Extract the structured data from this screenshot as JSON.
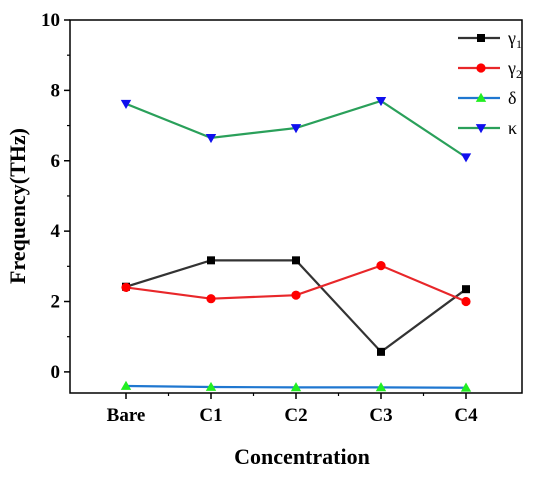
{
  "chart_data": {
    "type": "line",
    "xlabel": "Concentration",
    "ylabel": "Frequency(THz)",
    "categories": [
      "Bare",
      "C1",
      "C2",
      "C3",
      "C4"
    ],
    "ylim": [
      -0.6,
      10
    ],
    "yticks": [
      "0",
      "2",
      "4",
      "6",
      "8",
      "10"
    ],
    "grid": false,
    "legend_position": "top-right",
    "series": [
      {
        "name": "γ",
        "subscript": "1",
        "color": "#333333",
        "marker": "square",
        "marker_color": "#000000",
        "values": [
          2.42,
          3.17,
          3.17,
          0.57,
          2.35
        ]
      },
      {
        "name": "γ",
        "subscript": "2",
        "color": "#e8272a",
        "marker": "circle",
        "marker_color": "#ff0000",
        "values": [
          2.4,
          2.08,
          2.18,
          3.02,
          2.0
        ]
      },
      {
        "name": "δ",
        "subscript": "",
        "color": "#1f77d0",
        "marker": "triangle-up",
        "marker_color": "#22ee22",
        "values": [
          -0.4,
          -0.43,
          -0.44,
          -0.44,
          -0.45
        ]
      },
      {
        "name": "κ",
        "subscript": "",
        "color": "#2aa05a",
        "marker": "triangle-down",
        "marker_color": "#1010ee",
        "values": [
          7.62,
          6.65,
          6.93,
          7.7,
          6.1
        ]
      }
    ]
  }
}
